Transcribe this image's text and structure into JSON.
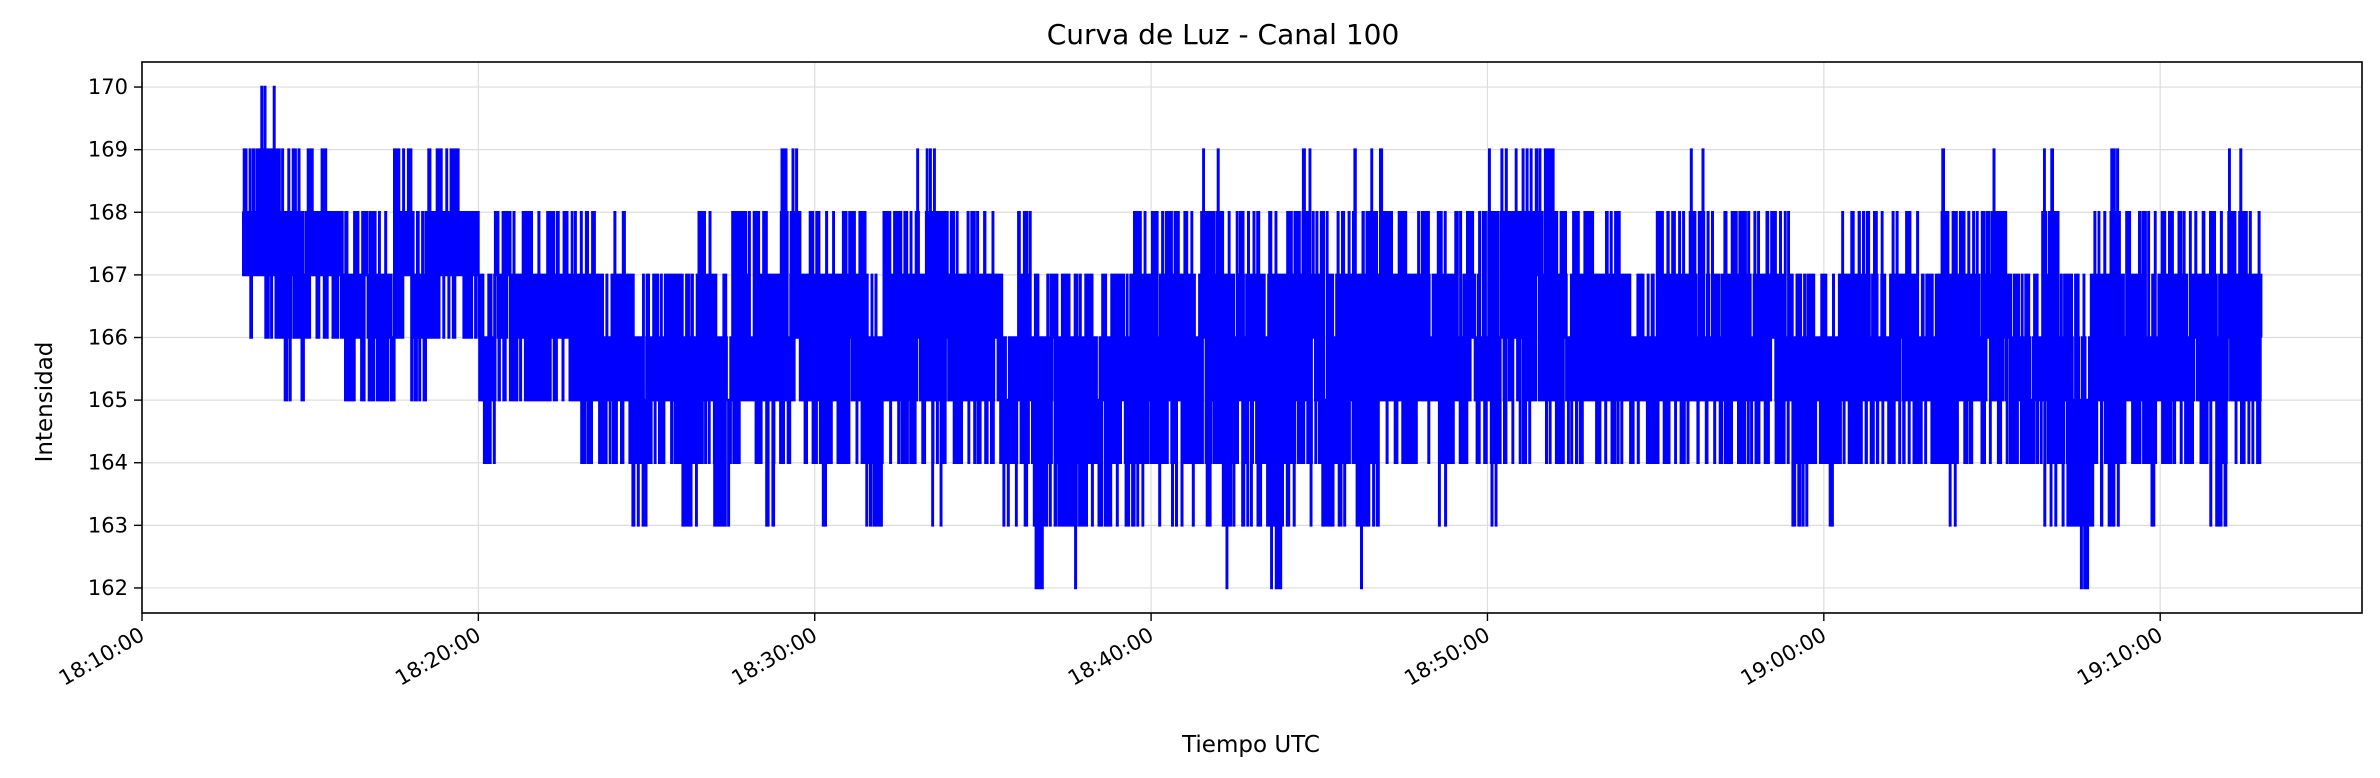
{
  "chart_data": {
    "type": "line",
    "title": "Curva de Luz - Canal 100",
    "xlabel": "Tiempo UTC",
    "ylabel": "Intensidad",
    "x_ticks": [
      "18:10:00",
      "18:20:00",
      "18:30:00",
      "18:40:00",
      "18:50:00",
      "19:00:00",
      "19:10:00"
    ],
    "x_tick_seconds": [
      0,
      600,
      1200,
      1800,
      2400,
      3000,
      3600
    ],
    "y_ticks": [
      162,
      163,
      164,
      165,
      166,
      167,
      168,
      169,
      170
    ],
    "xlim": [
      "18:10:00",
      "19:16:00"
    ],
    "ylim": [
      161.6,
      170.4
    ],
    "grid": true,
    "line_color": "#0000ff",
    "series": [
      {
        "x": [
          "18:13:00",
          "18:13:30",
          "18:14:00",
          "18:14:30",
          "18:15:00",
          "18:15:30",
          "18:16:00",
          "18:16:30",
          "18:17:00",
          "18:17:30",
          "18:18:00",
          "18:18:30",
          "18:19:00",
          "18:19:30",
          "18:20:00",
          "18:20:30",
          "18:21:00",
          "18:21:30",
          "18:22:00",
          "18:22:30",
          "18:23:00",
          "18:23:30",
          "18:24:00",
          "18:24:30",
          "18:25:00",
          "18:25:30",
          "18:26:00",
          "18:26:30",
          "18:27:00",
          "18:27:30",
          "18:28:00",
          "18:28:30",
          "18:29:00",
          "18:29:30",
          "18:30:00",
          "18:30:30",
          "18:31:00",
          "18:31:30",
          "18:32:00",
          "18:32:30",
          "18:33:00",
          "18:33:30",
          "18:34:00",
          "18:34:30",
          "18:35:00",
          "18:35:30",
          "18:36:00",
          "18:36:30",
          "18:37:00",
          "18:37:30",
          "18:38:00",
          "18:38:30",
          "18:39:00",
          "18:39:30",
          "18:40:00",
          "18:40:30",
          "18:41:00",
          "18:41:30",
          "18:42:00",
          "18:42:30",
          "18:43:00",
          "18:43:30",
          "18:44:00",
          "18:44:30",
          "18:45:00",
          "18:45:30",
          "18:46:00",
          "18:46:30",
          "18:47:00",
          "18:47:30",
          "18:48:00",
          "18:48:30",
          "18:49:00",
          "18:49:30",
          "18:50:00",
          "18:50:30",
          "18:51:00",
          "18:51:30",
          "18:52:00",
          "18:52:30",
          "18:53:00",
          "18:53:30",
          "18:54:00",
          "18:54:30",
          "18:55:00",
          "18:55:30",
          "18:56:00",
          "18:56:30",
          "18:57:00",
          "18:57:30",
          "18:58:00",
          "18:58:30",
          "18:59:00",
          "18:59:30",
          "19:00:00",
          "19:00:30",
          "19:01:00",
          "19:01:30",
          "19:02:00",
          "19:02:30",
          "19:03:00",
          "19:03:30",
          "19:04:00",
          "19:04:30",
          "19:05:00",
          "19:05:30",
          "19:06:00",
          "19:06:30",
          "19:07:00",
          "19:07:30",
          "19:08:00",
          "19:08:30",
          "19:09:00",
          "19:09:30",
          "19:10:00",
          "19:10:30",
          "19:11:00",
          "19:11:30",
          "19:12:00",
          "19:12:30",
          "19:13:00"
        ],
        "min": [
          166,
          166,
          165,
          165,
          166,
          166,
          165,
          165,
          165,
          166,
          165,
          166,
          166,
          166,
          164,
          165,
          165,
          165,
          165,
          165,
          164,
          164,
          164,
          163,
          164,
          164,
          163,
          164,
          163,
          164,
          164,
          163,
          164,
          164,
          163,
          164,
          164,
          163,
          164,
          164,
          164,
          163,
          164,
          164,
          164,
          163,
          163,
          162,
          163,
          162,
          163,
          163,
          163,
          163,
          163,
          163,
          163,
          163,
          162,
          163,
          163,
          162,
          163,
          163,
          163,
          163,
          162,
          163,
          164,
          164,
          164,
          163,
          164,
          164,
          163,
          164,
          164,
          164,
          164,
          164,
          164,
          164,
          164,
          164,
          164,
          164,
          164,
          164,
          164,
          164,
          164,
          164,
          163,
          164,
          163,
          164,
          164,
          164,
          164,
          164,
          164,
          163,
          164,
          164,
          164,
          164,
          164,
          163,
          163,
          162,
          163,
          163,
          164,
          163,
          164,
          164,
          164,
          163,
          164,
          164,
          164
        ],
        "max": [
          169,
          170,
          169,
          169,
          169,
          168,
          168,
          168,
          168,
          169,
          168,
          169,
          169,
          168,
          167,
          168,
          168,
          168,
          168,
          168,
          168,
          167,
          168,
          167,
          167,
          167,
          167,
          168,
          167,
          168,
          168,
          168,
          169,
          168,
          168,
          168,
          168,
          167,
          168,
          168,
          169,
          169,
          168,
          168,
          168,
          167,
          168,
          167,
          167,
          167,
          167,
          167,
          167,
          168,
          168,
          168,
          168,
          169,
          168,
          168,
          168,
          168,
          168,
          169,
          168,
          168,
          169,
          169,
          168,
          168,
          168,
          168,
          168,
          168,
          169,
          169,
          169,
          169,
          168,
          168,
          168,
          168,
          167,
          167,
          168,
          168,
          169,
          168,
          168,
          168,
          168,
          168,
          167,
          167,
          167,
          168,
          168,
          168,
          168,
          168,
          167,
          169,
          168,
          168,
          169,
          167,
          167,
          169,
          167,
          167,
          168,
          169,
          168,
          168,
          168,
          168,
          168,
          168,
          169,
          168,
          168
        ]
      }
    ]
  }
}
